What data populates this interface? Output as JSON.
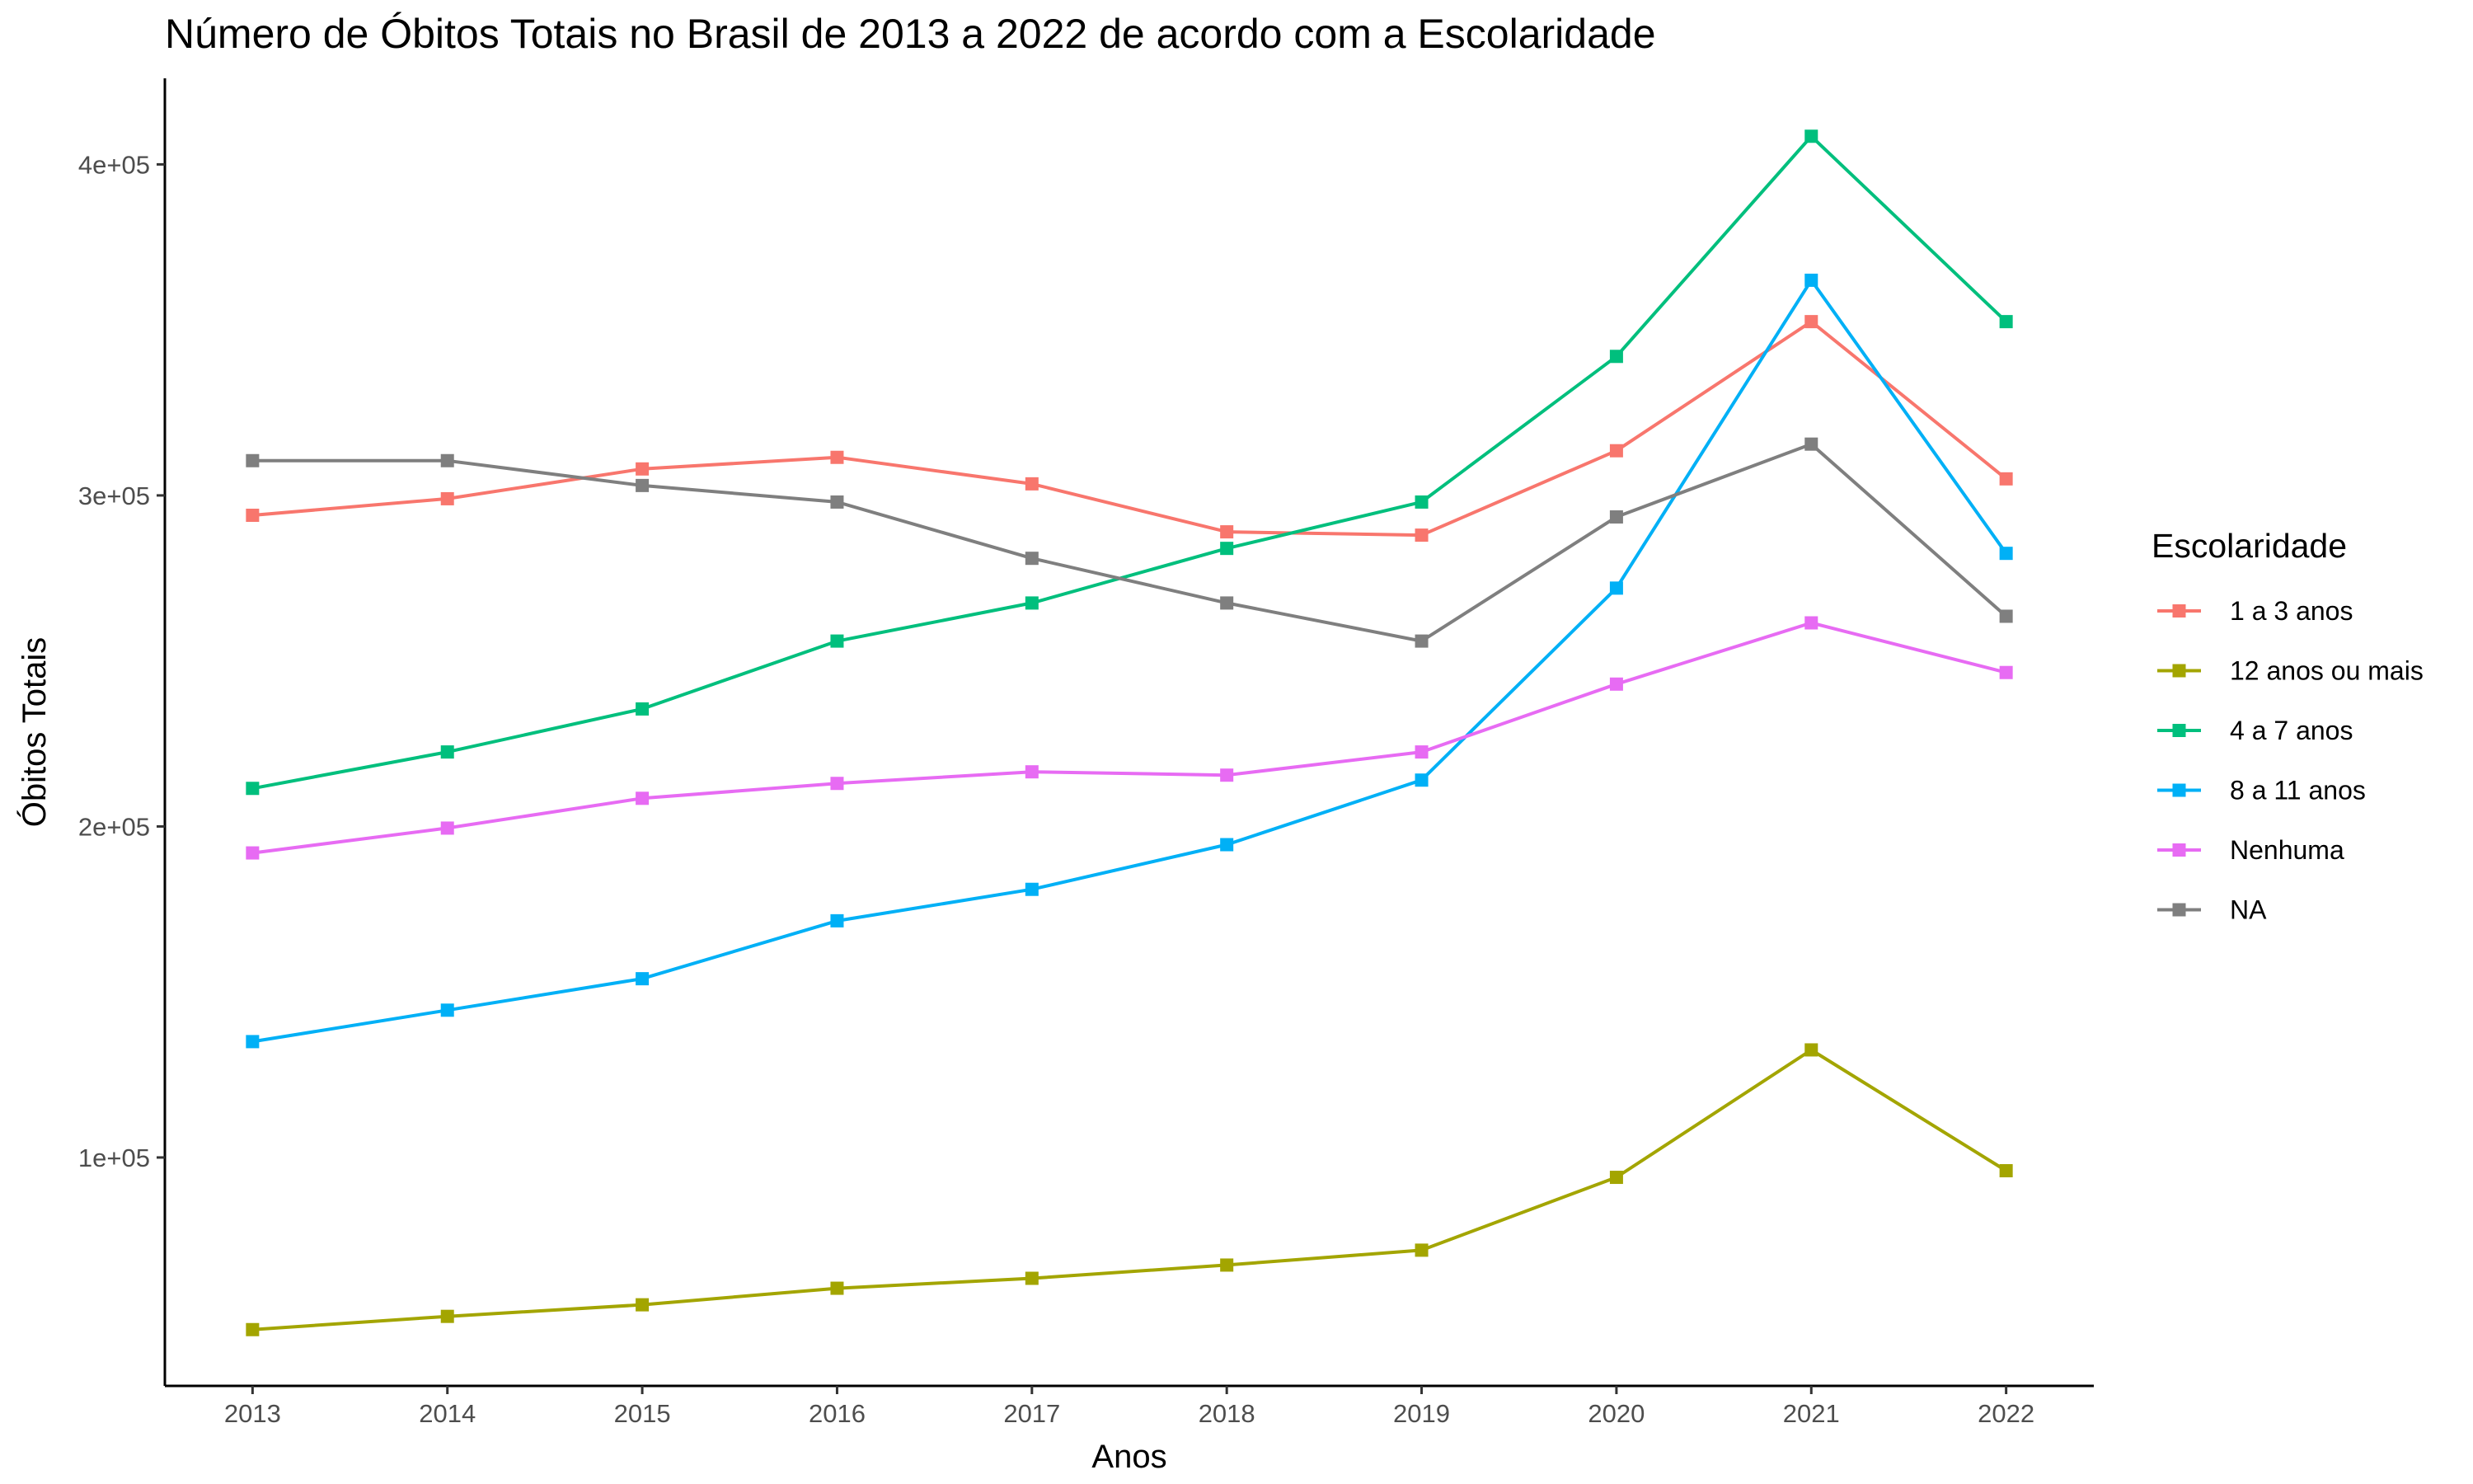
{
  "chart_data": {
    "type": "line",
    "title": "Número de Óbitos Totais no Brasil de 2013 a 2022 de acordo com a Escolaridade",
    "xlabel": "Anos",
    "ylabel": "Óbitos Totais",
    "x": [
      "2013",
      "2014",
      "2015",
      "2016",
      "2017",
      "2018",
      "2019",
      "2020",
      "2021",
      "2022"
    ],
    "xlim": [
      2012.55,
      2022.45
    ],
    "ylim": [
      31000,
      426000
    ],
    "y_ticks": [
      100000,
      200000,
      300000,
      400000
    ],
    "y_tick_labels": [
      "1e+05",
      "2e+05",
      "3e+05",
      "4e+05"
    ],
    "grid": false,
    "legend": {
      "title": "Escolaridade",
      "position": "right"
    },
    "series": [
      {
        "name": "1 a 3 anos",
        "color": "#F8766D",
        "values": [
          294000,
          299000,
          308000,
          311500,
          303500,
          289000,
          288000,
          313500,
          352500,
          305000
        ]
      },
      {
        "name": "12 anos ou mais",
        "color": "#A3A500",
        "values": [
          48000,
          52000,
          55500,
          60500,
          63500,
          67500,
          72000,
          94000,
          132500,
          96000
        ]
      },
      {
        "name": "4 a 7 anos",
        "color": "#00BF7D",
        "values": [
          211500,
          222500,
          235500,
          256000,
          267500,
          284000,
          298000,
          342000,
          408500,
          352500
        ]
      },
      {
        "name": "8 a 11 anos",
        "color": "#00B0F6",
        "values": [
          135000,
          144500,
          154000,
          171500,
          181000,
          194500,
          214000,
          272000,
          365000,
          282500
        ]
      },
      {
        "name": "Nenhuma",
        "color": "#E76BF3",
        "values": [
          192000,
          199500,
          208500,
          213000,
          216500,
          215500,
          222500,
          243000,
          261500,
          246500
        ]
      },
      {
        "name": "NA",
        "color": "#7F7F7F",
        "values": [
          310500,
          310500,
          303000,
          298000,
          281000,
          267500,
          256000,
          293500,
          315500,
          263500
        ]
      }
    ]
  }
}
